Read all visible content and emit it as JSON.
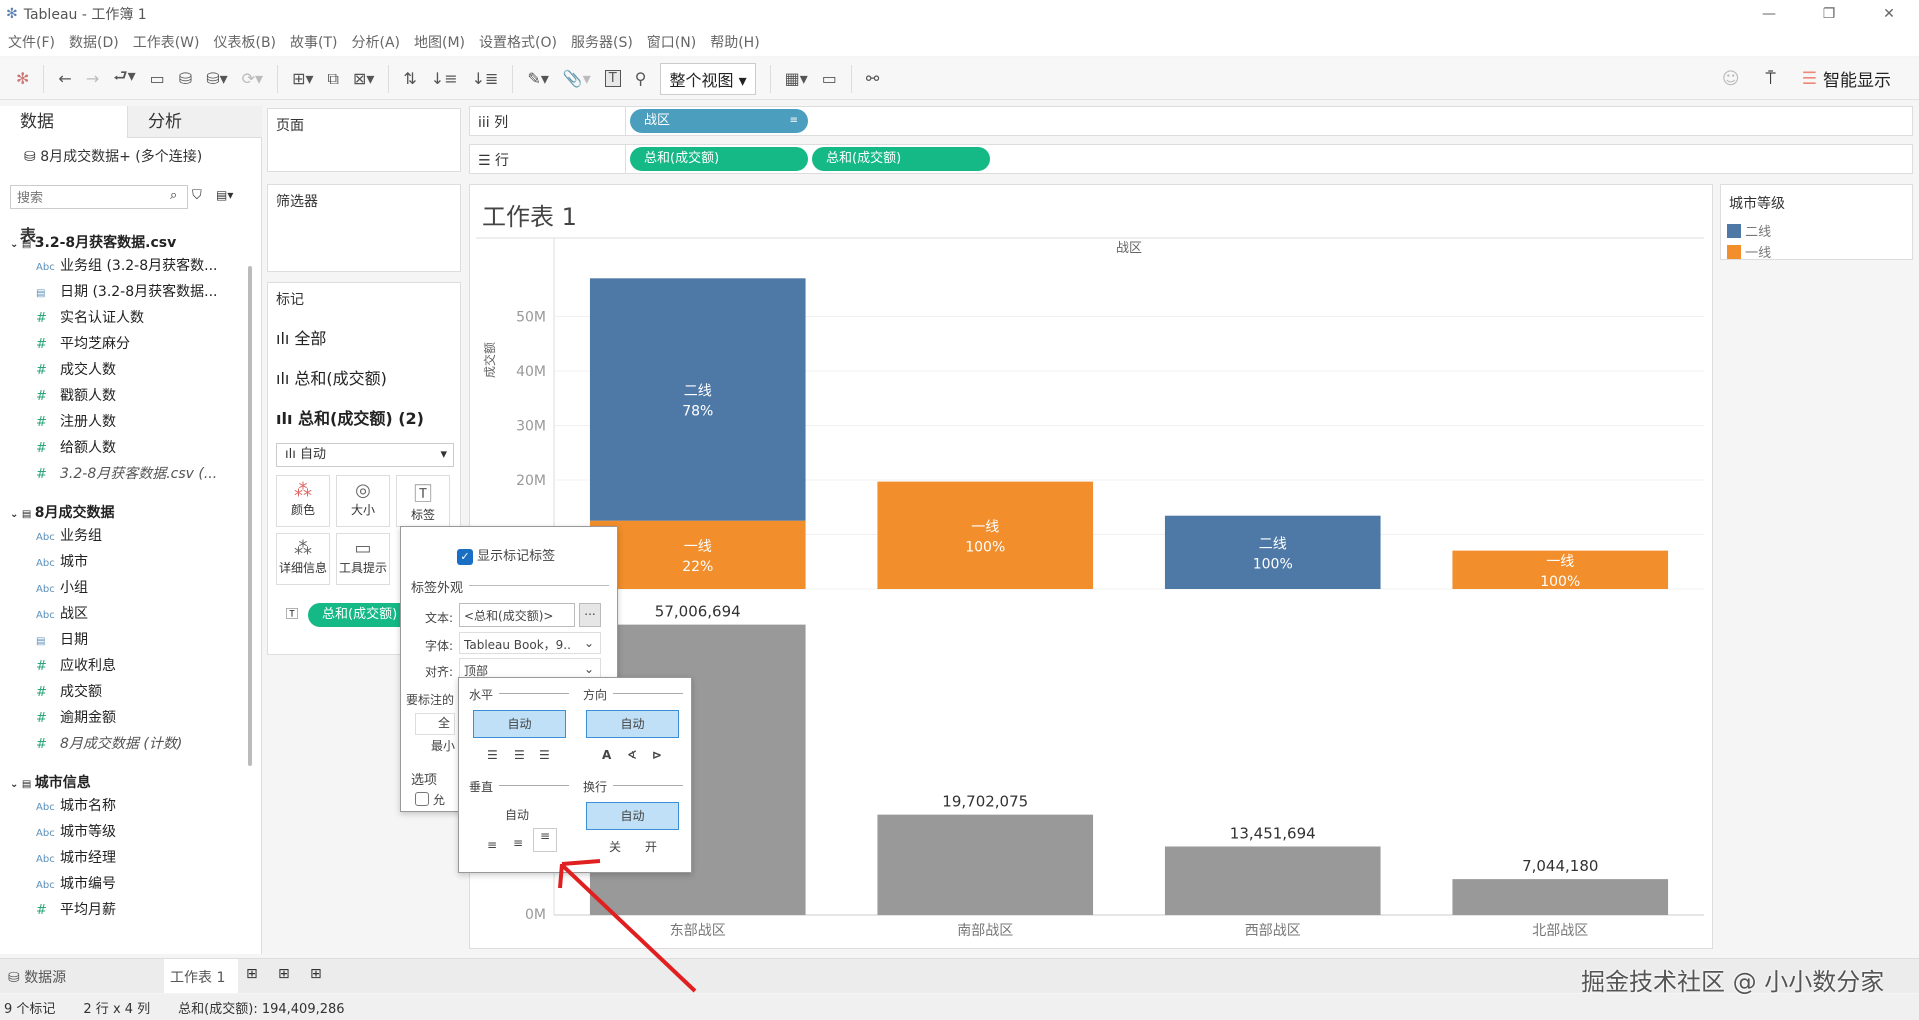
{
  "window": {
    "title": "Tableau - 工作簿 1",
    "controls": [
      "—",
      "❐",
      "✕"
    ]
  },
  "menu": [
    "文件(F)",
    "数据(D)",
    "工作表(W)",
    "仪表板(B)",
    "故事(T)",
    "分析(A)",
    "地图(M)",
    "设置格式(O)",
    "服务器(S)",
    "窗口(N)",
    "帮助(H)"
  ],
  "toolbar": {
    "view_select": "整个视图",
    "smart_show": "智能显示"
  },
  "left": {
    "tab_data": "数据",
    "tab_analysis": "分析",
    "connection": "8月成交数据+ (多个连接)",
    "search_placeholder": "搜索",
    "tables_label": "表",
    "groups": [
      {
        "name": "3.2-8月获客数据.csv",
        "fields": [
          {
            "t": "Abc",
            "n": "业务组 (3.2-8月获客数..."
          },
          {
            "t": "date",
            "n": "日期 (3.2-8月获客数据..."
          },
          {
            "t": "#",
            "n": "实名认证人数"
          },
          {
            "t": "#",
            "n": "平均芝麻分"
          },
          {
            "t": "#",
            "n": "成交人数"
          },
          {
            "t": "#",
            "n": "戳额人数"
          },
          {
            "t": "#",
            "n": "注册人数"
          },
          {
            "t": "#",
            "n": "给额人数"
          },
          {
            "t": "#",
            "n": "3.2-8月获客数据.csv (...",
            "i": true
          }
        ]
      },
      {
        "name": "8月成交数据",
        "fields": [
          {
            "t": "Abc",
            "n": "业务组"
          },
          {
            "t": "Abc",
            "n": "城市"
          },
          {
            "t": "Abc",
            "n": "小组"
          },
          {
            "t": "Abc",
            "n": "战区"
          },
          {
            "t": "date",
            "n": "日期"
          },
          {
            "t": "#",
            "n": "应收利息"
          },
          {
            "t": "#",
            "n": "成交额"
          },
          {
            "t": "#",
            "n": "逾期金额"
          },
          {
            "t": "#",
            "n": "8月成交数据 (计数)",
            "i": true
          }
        ]
      },
      {
        "name": "城市信息",
        "fields": [
          {
            "t": "Abc",
            "n": "城市名称"
          },
          {
            "t": "Abc",
            "n": "城市等级"
          },
          {
            "t": "Abc",
            "n": "城市经理"
          },
          {
            "t": "Abc",
            "n": "城市编号"
          },
          {
            "t": "#",
            "n": "平均月薪"
          }
        ]
      }
    ]
  },
  "cards": {
    "pages": "页面",
    "filters": "筛选器",
    "marks": "标记",
    "marks_all": "全部",
    "marks_1": "总和(成交额)",
    "marks_2": "总和(成交额) (2)",
    "mark_type": "自动",
    "buttons": [
      "颜色",
      "大小",
      "标签",
      "详细信息",
      "工具提示"
    ],
    "label_pill": "总和(成交额)"
  },
  "shelves": {
    "columns_label": "列",
    "rows_label": "行",
    "columns": [
      "战区"
    ],
    "rows": [
      "总和(成交额)",
      "总和(成交额)"
    ]
  },
  "sheet": {
    "title": "工作表 1"
  },
  "legend": {
    "title": "城市等级",
    "items": [
      {
        "name": "二线",
        "color": "#4e79a7"
      },
      {
        "name": "一线",
        "color": "#f28e2b"
      }
    ]
  },
  "chart_data": {
    "type": "bar",
    "header": "战区",
    "categories": [
      "东部战区",
      "南部战区",
      "西部战区",
      "北部战区"
    ],
    "ylabel": "成交额",
    "top": {
      "stacked": true,
      "ylim": [
        0,
        60000000
      ],
      "ticks": [
        "0M",
        "10M",
        "20M",
        "30M",
        "40M",
        "50M"
      ],
      "series": [
        {
          "name": "一线",
          "color": "#f28e2b",
          "values": [
            12541473,
            19702075,
            0,
            7044180
          ],
          "pct": [
            "22%",
            "100%",
            "",
            "100%"
          ]
        },
        {
          "name": "二线",
          "color": "#4e79a7",
          "values": [
            44465221,
            0,
            13451694,
            0
          ],
          "pct": [
            "78%",
            "",
            "100%",
            ""
          ]
        }
      ]
    },
    "bottom": {
      "ylim": [
        0,
        64000000
      ],
      "ticks": [
        "0M"
      ],
      "color": "#999999",
      "values": [
        57006694,
        19702075,
        13451694,
        7044180
      ],
      "labels": [
        "57,006,694",
        "19,702,075",
        "13,451,694",
        "7,044,180"
      ]
    }
  },
  "label_popup": {
    "show_labels": "显示标记标签",
    "show_checked": true,
    "appearance": "标签外观",
    "text_label": "文本:",
    "text_value": "<总和(成交额)>",
    "more": "...",
    "font_label": "字体:",
    "font_value": "Tableau Book，9..",
    "align_label": "对齐:",
    "align_value": "顶部",
    "marks_to_label": "要标注的",
    "partial1": "全",
    "partial2": "最小",
    "options": "选项",
    "allow": "允"
  },
  "align_popup": {
    "horizontal": "水平",
    "direction": "方向",
    "auto": "自动",
    "vertical": "垂直",
    "wrap": "换行",
    "off": "关",
    "on": "开"
  },
  "watermark": "掘金技术社区 @ 小小数分家",
  "bottom_tabs": {
    "datasource": "数据源",
    "sheet": "工作表 1"
  },
  "status": {
    "marks": "9 个标记",
    "dims": "2 行 x 4 列",
    "sum": "总和(成交额): 194,409,286"
  }
}
